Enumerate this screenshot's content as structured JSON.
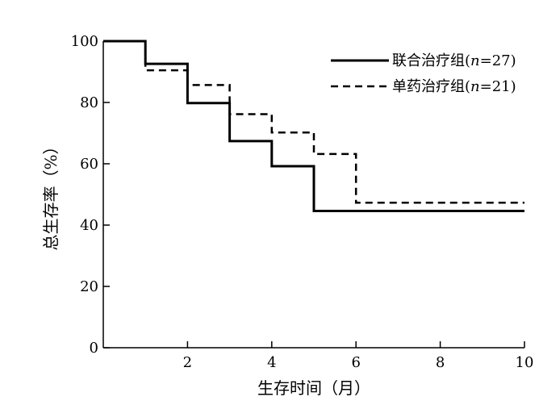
{
  "chart_data": {
    "type": "line",
    "step": true,
    "xlabel": "生存时间（月）",
    "ylabel": "总生存率（%）",
    "xlim": [
      0,
      10
    ],
    "ylim": [
      0,
      100
    ],
    "x_ticks": [
      2,
      4,
      6,
      8,
      10
    ],
    "y_ticks": [
      0,
      20,
      40,
      60,
      80,
      100
    ],
    "grid": false,
    "legend_position": "top-right",
    "series": [
      {
        "name_prefix": "联合治疗组(",
        "name_n": "n",
        "name_suffix": "=27)",
        "style": "solid",
        "color": "#000000",
        "x": [
          0,
          1,
          2,
          3,
          4,
          5,
          10
        ],
        "y": [
          100,
          92.6,
          79.8,
          67.4,
          59.2,
          44.6,
          44.6
        ]
      },
      {
        "name_prefix": "单药治疗组(",
        "name_n": "n",
        "name_suffix": "=21)",
        "style": "dashed",
        "color": "#000000",
        "x": [
          0,
          1,
          2,
          3,
          4,
          5,
          6,
          10
        ],
        "y": [
          100,
          90.5,
          85.7,
          76.2,
          70.2,
          63.2,
          47.3,
          47.3
        ]
      }
    ]
  }
}
